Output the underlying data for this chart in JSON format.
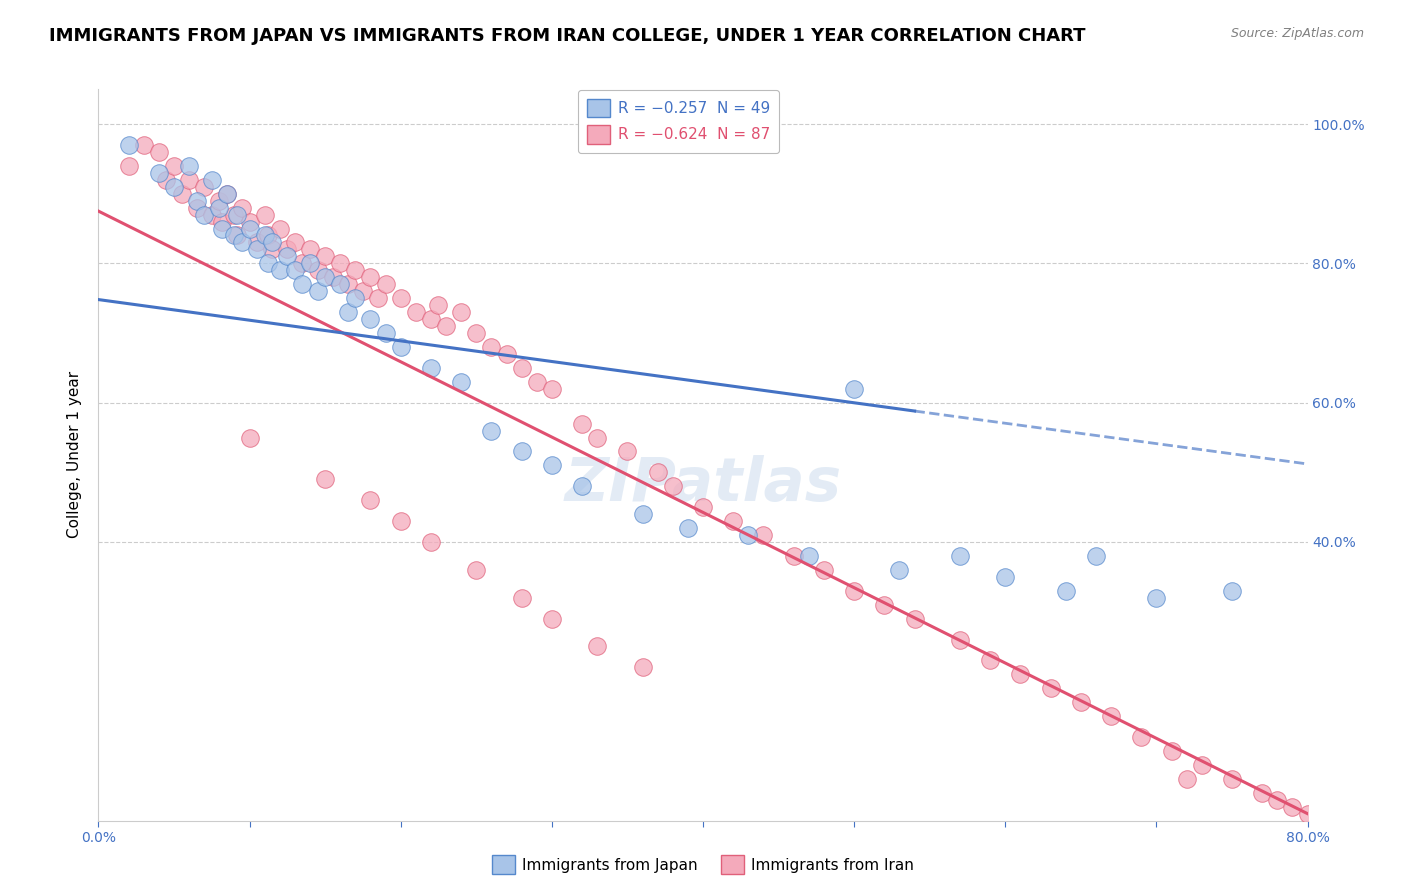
{
  "title": "IMMIGRANTS FROM JAPAN VS IMMIGRANTS FROM IRAN COLLEGE, UNDER 1 YEAR CORRELATION CHART",
  "source": "Source: ZipAtlas.com",
  "ylabel": "College, Under 1 year",
  "legend1_label": "R = −0.257  N = 49",
  "legend2_label": "R = −0.624  N = 87",
  "japan_dot_color": "#a8c4e8",
  "iran_dot_color": "#f4aabb",
  "japan_dot_edge": "#5588cc",
  "iran_dot_edge": "#e0607a",
  "japan_line_color": "#4472c4",
  "iran_line_color": "#e05070",
  "japan_line_solid": [
    [
      0.0,
      0.748
    ],
    [
      0.54,
      0.588
    ]
  ],
  "japan_line_dashed": [
    [
      0.54,
      0.588
    ],
    [
      0.8,
      0.512
    ]
  ],
  "iran_line_solid": [
    [
      0.0,
      0.875
    ],
    [
      0.8,
      0.01
    ]
  ],
  "japan_scatter_x": [
    0.02,
    0.04,
    0.05,
    0.06,
    0.065,
    0.07,
    0.075,
    0.08,
    0.082,
    0.085,
    0.09,
    0.092,
    0.095,
    0.1,
    0.105,
    0.11,
    0.112,
    0.115,
    0.12,
    0.125,
    0.13,
    0.135,
    0.14,
    0.145,
    0.15,
    0.16,
    0.165,
    0.17,
    0.18,
    0.19,
    0.2,
    0.22,
    0.24,
    0.26,
    0.28,
    0.3,
    0.32,
    0.36,
    0.39,
    0.43,
    0.47,
    0.5,
    0.53,
    0.57,
    0.6,
    0.64,
    0.66,
    0.7,
    0.75
  ],
  "japan_scatter_y": [
    0.97,
    0.93,
    0.91,
    0.94,
    0.89,
    0.87,
    0.92,
    0.88,
    0.85,
    0.9,
    0.84,
    0.87,
    0.83,
    0.85,
    0.82,
    0.84,
    0.8,
    0.83,
    0.79,
    0.81,
    0.79,
    0.77,
    0.8,
    0.76,
    0.78,
    0.77,
    0.73,
    0.75,
    0.72,
    0.7,
    0.68,
    0.65,
    0.63,
    0.56,
    0.53,
    0.51,
    0.48,
    0.44,
    0.42,
    0.41,
    0.38,
    0.62,
    0.36,
    0.38,
    0.35,
    0.33,
    0.38,
    0.32,
    0.33
  ],
  "iran_scatter_x": [
    0.02,
    0.03,
    0.04,
    0.045,
    0.05,
    0.055,
    0.06,
    0.065,
    0.07,
    0.075,
    0.08,
    0.082,
    0.085,
    0.09,
    0.092,
    0.095,
    0.1,
    0.105,
    0.11,
    0.112,
    0.115,
    0.12,
    0.125,
    0.13,
    0.135,
    0.14,
    0.145,
    0.15,
    0.155,
    0.16,
    0.165,
    0.17,
    0.175,
    0.18,
    0.185,
    0.19,
    0.2,
    0.21,
    0.22,
    0.225,
    0.23,
    0.24,
    0.25,
    0.26,
    0.27,
    0.28,
    0.29,
    0.3,
    0.32,
    0.33,
    0.35,
    0.37,
    0.38,
    0.4,
    0.42,
    0.44,
    0.46,
    0.48,
    0.5,
    0.52,
    0.54,
    0.57,
    0.59,
    0.61,
    0.63,
    0.65,
    0.67,
    0.69,
    0.71,
    0.73,
    0.75,
    0.77,
    0.78,
    0.79,
    0.8,
    0.81,
    0.1,
    0.15,
    0.18,
    0.2,
    0.22,
    0.25,
    0.28,
    0.3,
    0.33,
    0.36,
    0.72
  ],
  "iran_scatter_y": [
    0.94,
    0.97,
    0.96,
    0.92,
    0.94,
    0.9,
    0.92,
    0.88,
    0.91,
    0.87,
    0.89,
    0.86,
    0.9,
    0.87,
    0.84,
    0.88,
    0.86,
    0.83,
    0.87,
    0.84,
    0.82,
    0.85,
    0.82,
    0.83,
    0.8,
    0.82,
    0.79,
    0.81,
    0.78,
    0.8,
    0.77,
    0.79,
    0.76,
    0.78,
    0.75,
    0.77,
    0.75,
    0.73,
    0.72,
    0.74,
    0.71,
    0.73,
    0.7,
    0.68,
    0.67,
    0.65,
    0.63,
    0.62,
    0.57,
    0.55,
    0.53,
    0.5,
    0.48,
    0.45,
    0.43,
    0.41,
    0.38,
    0.36,
    0.33,
    0.31,
    0.29,
    0.26,
    0.23,
    0.21,
    0.19,
    0.17,
    0.15,
    0.12,
    0.1,
    0.08,
    0.06,
    0.04,
    0.03,
    0.02,
    0.01,
    0.01,
    0.55,
    0.49,
    0.46,
    0.43,
    0.4,
    0.36,
    0.32,
    0.29,
    0.25,
    0.22,
    0.06
  ],
  "xlim": [
    0.0,
    0.8
  ],
  "ylim": [
    0.0,
    1.05
  ],
  "ytick_positions": [
    0.4,
    0.6,
    0.8,
    1.0
  ],
  "ytick_labels": [
    "40.0%",
    "60.0%",
    "80.0%",
    "100.0%"
  ],
  "grid_yticks": [
    0.4,
    0.6,
    0.8,
    1.0
  ],
  "grid_color": "#cccccc",
  "background_color": "#ffffff",
  "title_fontsize": 13,
  "legend_fontsize": 11,
  "source_fontsize": 9,
  "tick_fontsize": 10,
  "axis_label_fontsize": 11,
  "dot_size": 160
}
